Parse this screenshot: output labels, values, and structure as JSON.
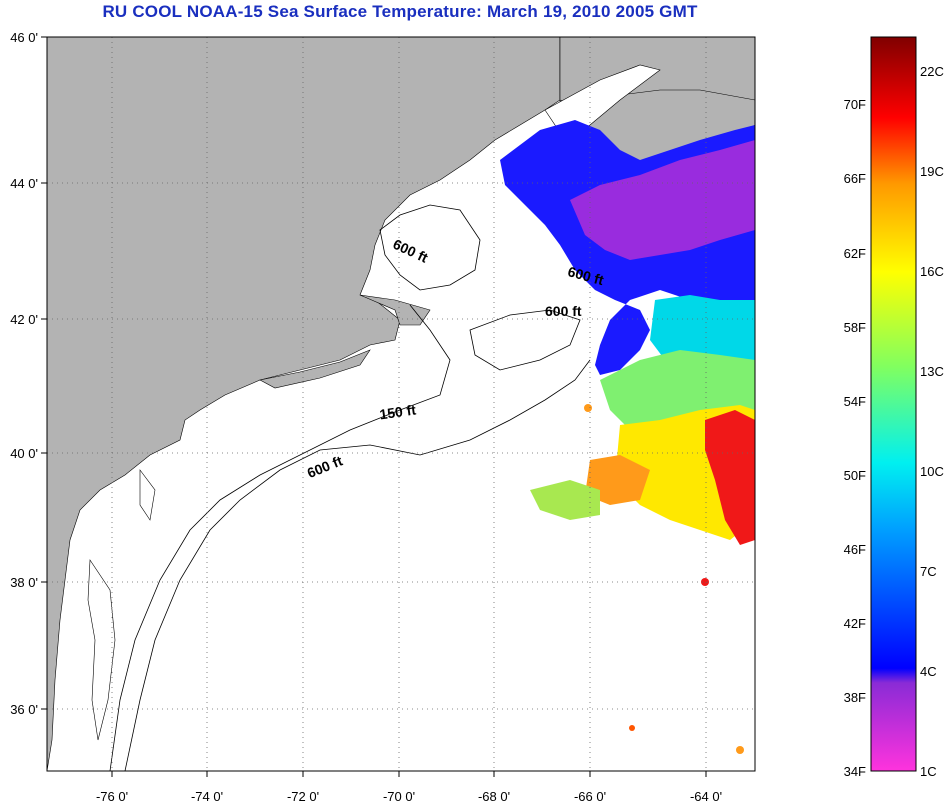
{
  "title": "RU COOL  NOAA-15  Sea Surface Temperature:  March 19, 2010 2005 GMT",
  "map": {
    "lon_ticks": [
      "-76 0'",
      "-74 0'",
      "-72 0'",
      "-70 0'",
      "-68 0'",
      "-66 0'",
      "-64 0'"
    ],
    "lat_ticks": [
      "46 0'",
      "44 0'",
      "42 0'",
      "40 0'",
      "38 0'",
      "36 0'"
    ],
    "lon_range": [
      -77,
      -63
    ],
    "lat_range": [
      35,
      46
    ],
    "grid": "dotted",
    "contour_labels": [
      "600 ft",
      "600 ft",
      "600 ft",
      "150 ft",
      "600 ft"
    ]
  },
  "colorbar": {
    "f_labels": [
      "70F",
      "66F",
      "62F",
      "58F",
      "54F",
      "50F",
      "46F",
      "42F",
      "38F",
      "34F"
    ],
    "c_labels": [
      "22C",
      "19C",
      "16C",
      "13C",
      "10C",
      "7C",
      "4C",
      "1C"
    ]
  },
  "colors": {
    "land": "#b3b3b3",
    "ocean": "#ffffff",
    "title": "#1a2fbf"
  }
}
